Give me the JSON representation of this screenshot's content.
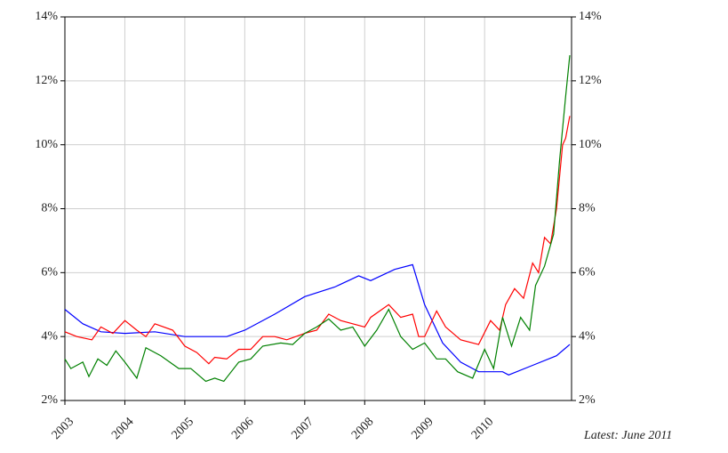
{
  "chart_data": {
    "type": "line",
    "annotation": "Latest: June 2011",
    "xlim": [
      2003,
      2011.45
    ],
    "xticks": [
      2003,
      2004,
      2005,
      2006,
      2007,
      2008,
      2009,
      2010
    ],
    "ylim": [
      2,
      14
    ],
    "yticks": [
      {
        "value": 2,
        "label": "2%"
      },
      {
        "value": 4,
        "label": "4%"
      },
      {
        "value": 6,
        "label": "6%"
      },
      {
        "value": 8,
        "label": "8%"
      },
      {
        "value": 10,
        "label": "10%"
      },
      {
        "value": 12,
        "label": "12%"
      },
      {
        "value": 14,
        "label": "14%"
      }
    ],
    "y2lim": [
      2,
      14
    ],
    "y2ticks": [
      {
        "value": 2,
        "label": "2%"
      },
      {
        "value": 4,
        "label": "4%"
      },
      {
        "value": 6,
        "label": "6%"
      },
      {
        "value": 8,
        "label": "8%"
      },
      {
        "value": 10,
        "label": "10%"
      },
      {
        "value": 12,
        "label": "12%"
      },
      {
        "value": 14,
        "label": "14%"
      }
    ],
    "grid": true,
    "series": [
      {
        "color": "#0000ff",
        "x": [
          2003.0,
          2003.3,
          2003.6,
          2004.0,
          2004.5,
          2005.0,
          2005.7,
          2006.0,
          2006.5,
          2007.0,
          2007.5,
          2007.9,
          2008.1,
          2008.5,
          2008.8,
          2009.0,
          2009.3,
          2009.6,
          2009.9,
          2010.3,
          2010.4,
          2010.8,
          2011.2,
          2011.42
        ],
        "values": [
          4.85,
          4.4,
          4.15,
          4.1,
          4.15,
          4.0,
          4.0,
          4.2,
          4.7,
          5.25,
          5.55,
          5.9,
          5.75,
          6.1,
          6.25,
          5.0,
          3.8,
          3.2,
          2.9,
          2.9,
          2.8,
          3.1,
          3.4,
          3.75
        ]
      },
      {
        "color": "#ff0000",
        "x": [
          2003.0,
          2003.2,
          2003.45,
          2003.6,
          2003.8,
          2004.0,
          2004.2,
          2004.35,
          2004.5,
          2004.8,
          2005.0,
          2005.2,
          2005.4,
          2005.5,
          2005.7,
          2005.9,
          2006.1,
          2006.3,
          2006.5,
          2006.7,
          2007.0,
          2007.2,
          2007.4,
          2007.6,
          2007.8,
          2008.0,
          2008.1,
          2008.4,
          2008.6,
          2008.8,
          2008.9,
          2009.0,
          2009.2,
          2009.35,
          2009.6,
          2009.9,
          2010.1,
          2010.25,
          2010.35,
          2010.5,
          2010.65,
          2010.8,
          2010.9,
          2011.0,
          2011.1,
          2011.2,
          2011.3,
          2011.35,
          2011.42
        ],
        "values": [
          4.15,
          4.0,
          3.9,
          4.3,
          4.1,
          4.5,
          4.2,
          4.0,
          4.4,
          4.2,
          3.7,
          3.5,
          3.15,
          3.35,
          3.3,
          3.6,
          3.6,
          4.0,
          4.0,
          3.9,
          4.1,
          4.2,
          4.7,
          4.5,
          4.4,
          4.3,
          4.6,
          5.0,
          4.6,
          4.7,
          4.0,
          4.0,
          4.8,
          4.3,
          3.9,
          3.75,
          4.5,
          4.2,
          5.0,
          5.5,
          5.2,
          6.3,
          6.0,
          7.1,
          6.9,
          8.0,
          10.0,
          10.2,
          10.9
        ]
      },
      {
        "color": "#008000",
        "x": [
          2003.0,
          2003.1,
          2003.3,
          2003.4,
          2003.55,
          2003.7,
          2003.85,
          2004.0,
          2004.2,
          2004.35,
          2004.6,
          2004.9,
          2005.1,
          2005.35,
          2005.5,
          2005.65,
          2005.9,
          2006.1,
          2006.3,
          2006.6,
          2006.8,
          2007.0,
          2007.2,
          2007.4,
          2007.6,
          2007.8,
          2008.0,
          2008.2,
          2008.4,
          2008.6,
          2008.8,
          2009.0,
          2009.2,
          2009.35,
          2009.55,
          2009.8,
          2010.0,
          2010.15,
          2010.3,
          2010.45,
          2010.6,
          2010.75,
          2010.85,
          2011.0,
          2011.15,
          2011.25,
          2011.35,
          2011.42
        ],
        "values": [
          3.3,
          3.0,
          3.2,
          2.75,
          3.3,
          3.1,
          3.55,
          3.2,
          2.7,
          3.65,
          3.4,
          3.0,
          3.0,
          2.6,
          2.7,
          2.6,
          3.2,
          3.3,
          3.7,
          3.8,
          3.75,
          4.1,
          4.3,
          4.55,
          4.2,
          4.3,
          3.7,
          4.2,
          4.85,
          4.0,
          3.6,
          3.8,
          3.3,
          3.3,
          2.9,
          2.7,
          3.6,
          3.0,
          4.6,
          3.7,
          4.6,
          4.2,
          5.6,
          6.2,
          7.2,
          9.5,
          11.5,
          12.8
        ]
      }
    ]
  }
}
